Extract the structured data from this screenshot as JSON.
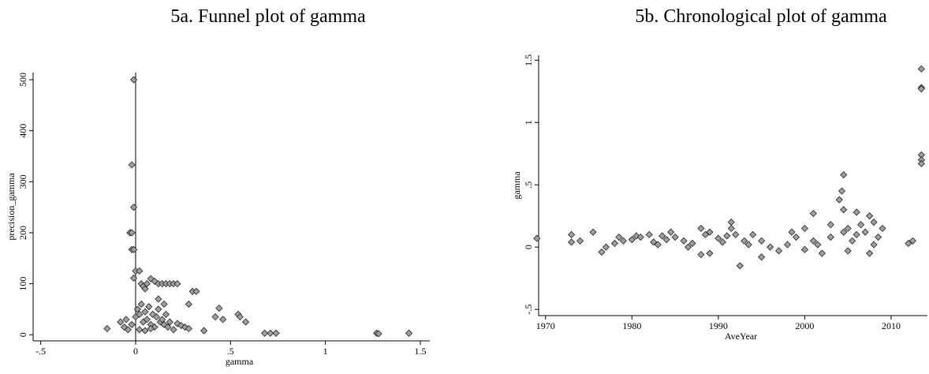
{
  "chart_data": [
    {
      "type": "scatter",
      "title": "5a. Funnel plot of gamma",
      "xlabel": "gamma",
      "ylabel": "precision_gamma",
      "color": "#a0a0a0",
      "xline": 0,
      "xlim": [
        -0.54,
        1.55
      ],
      "ylim": [
        -12,
        514
      ],
      "xticks": [
        {
          "value": -0.5,
          "label": "-.5"
        },
        0,
        {
          "value": 0.5,
          "label": ".5"
        },
        1,
        1.5
      ],
      "yticks": [
        0,
        100,
        200,
        300,
        400,
        500
      ],
      "x": [
        -0.01,
        -0.02,
        -0.01,
        -0.03,
        -0.02,
        -0.02,
        -0.01,
        0,
        0.02,
        -0.01,
        0.03,
        0.04,
        0.05,
        0.06,
        0.08,
        0.1,
        0.12,
        0.14,
        0.16,
        0.18,
        0.2,
        0.22,
        0.3,
        0.32,
        0.28,
        0.15,
        0.12,
        -0.15,
        -0.08,
        -0.06,
        -0.05,
        -0.04,
        -0.02,
        0,
        0.01,
        0.02,
        0.03,
        0.04,
        0.05,
        0.06,
        0.07,
        0.08,
        0.09,
        0.1,
        0.11,
        0.12,
        0.13,
        0.14,
        0.15,
        0.16,
        0.17,
        0.18,
        0.2,
        0.22,
        0.24,
        0.26,
        0.28,
        0.36,
        0.42,
        0.44,
        0.46,
        0.54,
        0.55,
        0.58,
        0.68,
        0.71,
        0.74,
        1.27,
        1.28,
        1.44,
        0.02,
        0.05,
        0.08
      ],
      "values": [
        500,
        333,
        250,
        200,
        200,
        167,
        167,
        125,
        125,
        111,
        100,
        95,
        90,
        100,
        110,
        105,
        100,
        100,
        100,
        100,
        100,
        100,
        85,
        85,
        60,
        60,
        70,
        12,
        25,
        15,
        30,
        10,
        20,
        35,
        50,
        40,
        60,
        25,
        45,
        30,
        55,
        20,
        40,
        15,
        35,
        50,
        25,
        30,
        20,
        40,
        15,
        25,
        10,
        22,
        18,
        15,
        12,
        8,
        35,
        52,
        30,
        40,
        35,
        25,
        3,
        3,
        3,
        3,
        2,
        3,
        10,
        8,
        12
      ]
    },
    {
      "type": "scatter",
      "title": "5b. Chronological plot of gamma",
      "xlabel": "AveYear",
      "ylabel": "gamma",
      "color": "#a0a0a0",
      "xlim": [
        1969.2,
        2014.2
      ],
      "ylim": [
        -0.55,
        1.54
      ],
      "xticks": [
        1970,
        1980,
        1990,
        2000,
        2010
      ],
      "yticks": [
        {
          "value": -0.5,
          "label": "-.5"
        },
        0,
        {
          "value": 0.5,
          "label": ".5"
        },
        1,
        1.5
      ],
      "x": [
        1969,
        1973,
        1973,
        1974,
        1975.5,
        1976.5,
        1977,
        1978,
        1978.5,
        1979,
        1980,
        1980.5,
        1981,
        1982,
        1982.5,
        1983,
        1983.5,
        1984,
        1984.5,
        1985,
        1986,
        1986.5,
        1987,
        1988,
        1988,
        1988.5,
        1989,
        1989,
        1990,
        1990.5,
        1991,
        1991.5,
        1991.5,
        1992,
        1992.5,
        1993,
        1993.5,
        1994,
        1995,
        1995,
        1996,
        1997,
        1998,
        1998.5,
        1999,
        2000,
        2000,
        2001,
        2001,
        2001.5,
        2002,
        2003,
        2003,
        2004,
        2004.3,
        2004.5,
        2004.5,
        2004.5,
        2005,
        2005,
        2005.5,
        2006,
        2006,
        2006.5,
        2007,
        2007.5,
        2007.5,
        2008,
        2008,
        2008.5,
        2009,
        2012,
        2012.5,
        2013.5,
        2013.5,
        2013.5,
        2013.5,
        2013.5,
        2013.5
      ],
      "values": [
        0.07,
        0.1,
        0.04,
        0.05,
        0.12,
        -0.04,
        0,
        0.03,
        0.08,
        0.05,
        0.06,
        0.09,
        0.08,
        0.1,
        0.04,
        0.02,
        0.09,
        0.06,
        0.12,
        0.08,
        0.05,
        0,
        0.03,
        0.15,
        -0.06,
        0.1,
        -0.05,
        0.12,
        0.07,
        0.04,
        0.09,
        0.2,
        0.15,
        0.1,
        -0.15,
        0.05,
        0.02,
        0.1,
        -0.08,
        0.05,
        0,
        -0.03,
        0.02,
        0.12,
        0.08,
        -0.02,
        0.15,
        0.05,
        0.27,
        0.02,
        -0.05,
        0.08,
        0.18,
        0.38,
        0.45,
        0.58,
        0.3,
        0.12,
        0.15,
        -0.03,
        0.05,
        0.28,
        0.1,
        0.18,
        0.12,
        0.25,
        -0.05,
        0.2,
        0.02,
        0.08,
        0.15,
        0.03,
        0.05,
        1.43,
        1.28,
        1.27,
        0.74,
        0.7,
        0.67
      ]
    }
  ]
}
